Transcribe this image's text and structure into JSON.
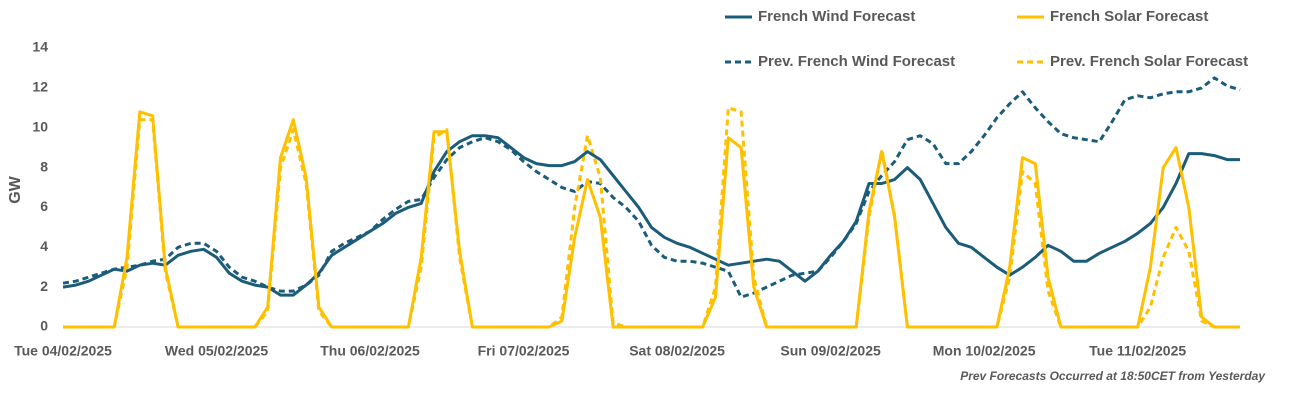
{
  "chart_data": {
    "type": "line",
    "y_label": "GW",
    "note": "Prev Forecasts Occurred at 18:50CET from Yesterday",
    "categories": [
      "Tue 04/02/2025",
      null,
      null,
      null,
      null,
      null,
      null,
      null,
      null,
      null,
      null,
      null,
      "Wed 05/02/2025",
      null,
      null,
      null,
      null,
      null,
      null,
      null,
      null,
      null,
      null,
      null,
      "Thu 06/02/2025",
      null,
      null,
      null,
      null,
      null,
      null,
      null,
      null,
      null,
      null,
      null,
      "Fri 07/02/2025",
      null,
      null,
      null,
      null,
      null,
      null,
      null,
      null,
      null,
      null,
      null,
      "Sat 08/02/2025",
      null,
      null,
      null,
      null,
      null,
      null,
      null,
      null,
      null,
      null,
      null,
      "Sun 09/02/2025",
      null,
      null,
      null,
      null,
      null,
      null,
      null,
      null,
      null,
      null,
      null,
      "Mon 10/02/2025",
      null,
      null,
      null,
      null,
      null,
      null,
      null,
      null,
      null,
      null,
      null,
      "Tue 11/02/2025",
      null,
      null,
      null,
      null,
      null,
      null,
      null,
      null
    ],
    "ylim": [
      0,
      14
    ],
    "yticks": [
      0,
      2,
      4,
      6,
      8,
      10,
      12,
      14
    ],
    "grid": false,
    "legend": "top-right",
    "series": [
      {
        "name": "French Wind Forecast",
        "color": "#1b5c7a",
        "dashed": false,
        "values": [
          2.0,
          2.1,
          2.3,
          2.6,
          2.9,
          2.8,
          3.1,
          3.2,
          3.1,
          3.6,
          3.8,
          3.9,
          3.5,
          2.7,
          2.3,
          2.1,
          2.0,
          1.6,
          1.6,
          2.1,
          2.7,
          3.6,
          4.0,
          4.4,
          4.8,
          5.2,
          5.7,
          6.0,
          6.2,
          7.8,
          8.8,
          9.3,
          9.6,
          9.6,
          9.5,
          9.0,
          8.5,
          8.2,
          8.1,
          8.1,
          8.3,
          8.8,
          8.4,
          7.6,
          6.8,
          6.0,
          5.0,
          4.5,
          4.2,
          4.0,
          3.7,
          3.4,
          3.1,
          3.2,
          3.3,
          3.4,
          3.3,
          2.8,
          2.3,
          2.8,
          3.6,
          4.3,
          5.3,
          7.2,
          7.2,
          7.4,
          8.0,
          7.4,
          6.2,
          5.0,
          4.2,
          4.0,
          3.5,
          3.0,
          2.6,
          3.0,
          3.5,
          4.1,
          3.8,
          3.3,
          3.3,
          3.7,
          4.0,
          4.3,
          4.7,
          5.2,
          6.0,
          7.2,
          8.7,
          8.7,
          8.6,
          8.4,
          8.4
        ]
      },
      {
        "name": "French Solar Forecast",
        "color": "#ffc000",
        "dashed": false,
        "values": [
          0,
          0,
          0,
          0,
          0,
          3.5,
          10.8,
          10.6,
          3.0,
          0,
          0,
          0,
          0,
          0,
          0,
          0,
          1.0,
          8.5,
          10.4,
          7.5,
          1.0,
          0,
          0,
          0,
          0,
          0,
          0,
          0,
          3.5,
          9.8,
          9.8,
          3.8,
          0,
          0,
          0,
          0,
          0,
          0,
          0,
          0.3,
          4.5,
          7.4,
          5.5,
          0,
          0,
          0,
          0,
          0,
          0,
          0,
          0,
          1.5,
          9.5,
          9.0,
          2.0,
          0,
          0,
          0,
          0,
          0,
          0,
          0,
          0,
          5.8,
          8.8,
          5.5,
          0,
          0,
          0,
          0,
          0,
          0,
          0,
          0,
          3.0,
          8.5,
          8.2,
          2.5,
          0,
          0,
          0,
          0,
          0,
          0,
          0,
          3.0,
          8.0,
          9.0,
          6.0,
          0.5,
          0,
          0,
          0
        ]
      },
      {
        "name": "Prev. French Wind Forecast",
        "color": "#1b5c7a",
        "dashed": true,
        "values": [
          2.2,
          2.3,
          2.5,
          2.7,
          2.9,
          3.0,
          3.1,
          3.3,
          3.4,
          4.0,
          4.2,
          4.2,
          3.8,
          3.0,
          2.5,
          2.3,
          2.0,
          1.8,
          1.8,
          2.1,
          2.6,
          3.8,
          4.2,
          4.5,
          4.8,
          5.4,
          5.9,
          6.3,
          6.4,
          7.5,
          8.4,
          9.0,
          9.3,
          9.5,
          9.3,
          8.9,
          8.3,
          7.8,
          7.4,
          7.0,
          6.8,
          7.3,
          7.2,
          6.5,
          6.0,
          5.3,
          4.1,
          3.5,
          3.3,
          3.3,
          3.2,
          3.0,
          2.8,
          1.5,
          1.7,
          2.0,
          2.3,
          2.6,
          2.7,
          2.8,
          3.5,
          4.3,
          5.2,
          6.8,
          7.6,
          8.3,
          9.4,
          9.6,
          9.2,
          8.2,
          8.2,
          8.8,
          9.6,
          10.5,
          11.2,
          11.8,
          11.0,
          10.3,
          9.7,
          9.5,
          9.4,
          9.3,
          10.3,
          11.4,
          11.6,
          11.5,
          11.7,
          11.8,
          11.8,
          12.0,
          12.5,
          12.1,
          11.9
        ]
      },
      {
        "name": "Prev. French Solar Forecast",
        "color": "#ffc000",
        "dashed": true,
        "values": [
          0,
          0,
          0,
          0,
          0,
          3.0,
          10.4,
          10.4,
          2.8,
          0,
          0,
          0,
          0,
          0,
          0,
          0,
          0.8,
          8.0,
          9.9,
          7.2,
          0.8,
          0,
          0,
          0,
          0,
          0,
          0,
          0,
          3.0,
          9.5,
          9.9,
          3.5,
          0,
          0,
          0,
          0,
          0,
          0,
          0,
          0.5,
          6.0,
          9.6,
          7.5,
          0.2,
          0,
          0,
          0,
          0,
          0,
          0,
          0,
          2.0,
          11.0,
          10.8,
          2.5,
          0,
          0,
          0,
          0,
          0,
          0,
          0,
          0,
          5.5,
          8.9,
          5.6,
          0,
          0,
          0,
          0,
          0,
          0,
          0,
          0,
          2.5,
          7.8,
          7.2,
          1.8,
          0,
          0,
          0,
          0,
          0,
          0,
          0,
          1.0,
          3.5,
          5.0,
          3.8,
          0.3,
          0,
          0,
          0
        ]
      }
    ]
  }
}
